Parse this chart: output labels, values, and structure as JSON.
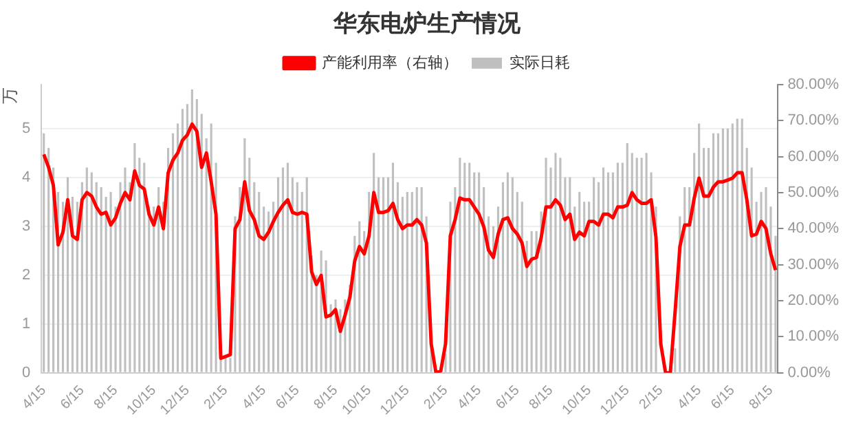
{
  "chart_data": {
    "type": "bar",
    "title": "华东电炉生产情况",
    "ylabel": "万",
    "categories": [
      "4/15",
      null,
      null,
      null,
      null,
      null,
      null,
      null,
      "6/15",
      null,
      null,
      null,
      null,
      null,
      null,
      "8/15",
      null,
      null,
      null,
      null,
      null,
      null,
      null,
      "10/15",
      null,
      null,
      null,
      null,
      null,
      null,
      "12/15",
      null,
      null,
      null,
      null,
      null,
      null,
      null,
      "2/15",
      null,
      null,
      null,
      null,
      null,
      null,
      null,
      "4/15",
      null,
      null,
      null,
      null,
      null,
      null,
      "6/15",
      null,
      null,
      null,
      null,
      null,
      null,
      null,
      "8/15",
      null,
      null,
      null,
      null,
      null,
      null,
      "10/15",
      null,
      null,
      null,
      null,
      null,
      null,
      null,
      "12/15",
      null,
      null,
      null,
      null,
      null,
      null,
      null,
      "2/15",
      null,
      null,
      null,
      null,
      null,
      null,
      "4/15",
      null,
      null,
      null,
      null,
      null,
      null,
      null,
      "6/15",
      null,
      null,
      null,
      null,
      null,
      null,
      "8/15",
      null,
      null,
      null,
      null,
      null,
      null,
      null,
      "10/15",
      null,
      null,
      null,
      null,
      null,
      null,
      null,
      "12/15",
      null,
      null,
      null,
      null,
      null,
      null,
      "2/15",
      null,
      null,
      null,
      null,
      null,
      null,
      null,
      "4/15",
      null,
      null,
      null,
      null,
      null,
      null,
      "6/15",
      null,
      null,
      null,
      null,
      null,
      null,
      null,
      "8/15",
      null
    ],
    "series": [
      {
        "name": "实际日耗",
        "color": "#bfbfbf",
        "values": [
          4.9,
          4.6,
          4.2,
          3.7,
          3.5,
          4.0,
          3.6,
          3.5,
          3.9,
          4.2,
          4.1,
          3.9,
          3.8,
          3.6,
          3.7,
          3.4,
          3.9,
          4.2,
          3.9,
          4.7,
          4.4,
          4.3,
          3.4,
          3.4,
          3.8,
          3.5,
          4.6,
          4.9,
          5.1,
          5.4,
          5.5,
          5.8,
          5.6,
          5.3,
          4.8,
          5.1,
          4.3,
          0.3,
          0.3,
          0.3,
          3.2,
          3.8,
          4.8,
          4.4,
          3.9,
          3.7,
          3.4,
          3.3,
          3.5,
          4.0,
          4.2,
          4.3,
          4.0,
          3.9,
          3.7,
          4.0,
          2.4,
          2.0,
          2.5,
          2.3,
          1.4,
          1.5,
          1.3,
          1.5,
          1.8,
          2.8,
          3.1,
          2.9,
          3.7,
          4.5,
          4.0,
          4.0,
          4.0,
          4.3,
          3.9,
          3.6,
          3.7,
          3.7,
          3.8,
          3.8,
          3.2,
          0.5,
          0,
          0,
          0.4,
          3.5,
          3.8,
          4.4,
          4.3,
          4.3,
          4.1,
          4.1,
          3.8,
          3.2,
          3.0,
          3.4,
          3.9,
          4.1,
          4.0,
          3.7,
          3.5,
          2.7,
          2.9,
          2.9,
          3.3,
          4.4,
          4.2,
          4.5,
          4.4,
          4.0,
          4.0,
          3.4,
          3.7,
          3.5,
          3.5,
          4.0,
          3.9,
          4.2,
          4.1,
          4.1,
          4.3,
          4.3,
          4.7,
          4.5,
          4.4,
          4.4,
          4.5,
          4.1,
          3.4,
          0,
          0,
          0,
          0.5,
          3.2,
          3.8,
          3.8,
          4.5,
          5.1,
          4.6,
          4.6,
          4.9,
          4.9,
          5.0,
          5.0,
          5.1,
          5.2,
          5.2,
          4.6,
          4.2,
          3.5,
          3.7,
          3.8,
          3.4,
          2.8
        ]
      },
      {
        "name": "产能利用率（右轴）",
        "type": "line",
        "axis": "y2",
        "color": "#ff0000",
        "values": [
          60.6,
          57,
          52,
          35.5,
          39,
          48,
          38,
          37,
          48,
          50,
          49,
          46,
          44,
          44.5,
          41,
          43,
          47,
          50,
          48,
          56,
          52,
          51,
          44,
          41,
          46,
          40,
          55.5,
          59,
          61,
          64.5,
          66,
          69,
          67,
          57,
          61,
          53,
          44,
          4,
          4.5,
          5,
          40,
          42.5,
          53,
          45,
          42.5,
          38,
          37,
          39,
          42,
          44.5,
          46.5,
          48,
          44.5,
          44,
          44.5,
          44,
          28,
          24.5,
          27,
          15.5,
          16,
          17.5,
          11.5,
          16,
          21,
          31,
          35,
          33,
          38,
          50,
          44.5,
          44.5,
          45,
          47,
          42.5,
          40,
          41,
          41,
          42.5,
          41,
          36,
          8,
          0,
          0.5,
          8,
          38,
          42.5,
          48.5,
          48,
          48,
          46,
          44,
          40.5,
          34,
          32,
          38.5,
          42.5,
          43,
          40,
          38.5,
          36,
          29.5,
          31.5,
          32,
          37.5,
          46,
          46,
          48,
          46.5,
          42.5,
          44,
          37,
          39,
          38,
          42,
          42,
          41,
          44,
          44,
          43,
          46,
          46,
          46.5,
          50,
          48,
          47,
          47,
          48,
          37.5,
          8,
          0,
          0,
          17,
          35,
          41,
          41,
          48.5,
          54,
          49,
          49,
          51.5,
          53,
          53,
          53.5,
          54,
          55.5,
          55.5,
          48,
          38,
          38.5,
          42,
          40,
          33,
          28.5
        ]
      }
    ],
    "ylim": [
      0,
      5.9
    ],
    "yticks": [
      0,
      1,
      2,
      3,
      4,
      5
    ],
    "y2lim": [
      0,
      80
    ],
    "y2ticks": [
      {
        "value": 0,
        "label": "0.00%"
      },
      {
        "value": 10,
        "label": "10.00%"
      },
      {
        "value": 20,
        "label": "20.00%"
      },
      {
        "value": 30,
        "label": "30.00%"
      },
      {
        "value": 40,
        "label": "40.00%"
      },
      {
        "value": 50,
        "label": "50.00%"
      },
      {
        "value": 60,
        "label": "60.00%"
      },
      {
        "value": 70,
        "label": "70.00%"
      },
      {
        "value": 80,
        "label": "80.00%"
      }
    ],
    "grid": "y",
    "legend": "top",
    "marker": "none",
    "line_style": "solid"
  }
}
